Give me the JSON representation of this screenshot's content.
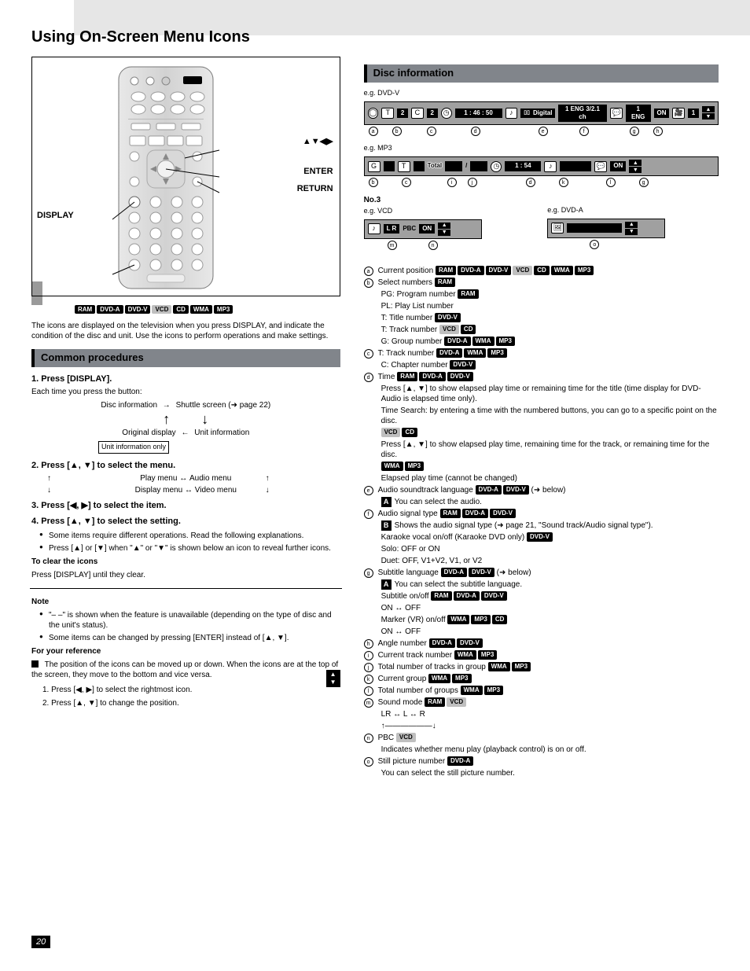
{
  "header": {
    "title": "Using On-Screen Menu Icons"
  },
  "remote": {
    "labels": {
      "cursor": "▲▼◀▶",
      "enter": "ENTER",
      "display": "DISPLAY",
      "return": "RETURN"
    }
  },
  "top_badges": [
    "RAM",
    "DVD-A",
    "DVD-V",
    "VCD",
    "CD",
    "WMA",
    "MP3"
  ],
  "intro": "The icons are displayed on the television when you press DISPLAY, and indicate the condition of the disc and unit. Use the icons to perform operations and make settings.",
  "common": {
    "bar_title": "Common procedures",
    "h1": "1. Press [DISPLAY].",
    "h1_body": "Each time you press the button:",
    "flow1_a": "Disc information",
    "flow1_arrow": "→",
    "flow1_b": "Shuttle screen (➜ page 22)",
    "flow_vert_a": "↑",
    "flow_vert_b": "↓",
    "flow2_a": "Original display",
    "flow2_arrow": "←",
    "flow2_b": "Unit information",
    "unit_info_tag": "Unit information only",
    "h2": "2. Press [▲, ▼] to select the menu.",
    "flow3_a": "Play menu",
    "flow3_b": "Audio menu",
    "flow4_a": "Display menu",
    "flow4_b": "Video menu",
    "h3": "3. Press [◀, ▶] to select the item.",
    "h4": "4. Press [▲, ▼] to select the setting.",
    "notes": [
      "Some items require different operations. Read the following explanations.",
      "Press [▲] or [▼] when \"▲\" or \"▼\" is shown below an icon to reveal further icons."
    ],
    "close": "To clear the icons",
    "close_body": "Press [DISPLAY] until they clear.",
    "note_hdr": "Note",
    "note_items": [
      "\"– –\" is shown when the feature is unavailable (depending on the type of disc and the unit's status).",
      "Some items can be changed by pressing [ENTER] instead of [▲, ▼]."
    ],
    "ref_hdr": "For your reference",
    "ref_body1": "The position of the icons can be moved up or down. When the icons are at the top of the screen, they move to the bottom and vice versa.",
    "ref_steps_a": "1. Press [◀, ▶] to select the rightmost icon.",
    "ref_steps_b": "2. Press [▲, ▼] to change the position."
  },
  "disc": {
    "bar_title": "Disc information",
    "osd1_labels": [
      "a",
      "b",
      "c",
      "d",
      "e",
      "f",
      "g",
      "h"
    ],
    "osd1": {
      "T_no1": "2",
      "T_no2": "2",
      "time": "1 : 46 : 50",
      "aud_icon": "♪",
      "dd": "Digital",
      "aud": "1 ENG",
      "ch": "3/2.1 ch",
      "sub_no": "1",
      "sub_lang": "ENG",
      "sub_on": "ON",
      "angle": "1"
    },
    "osd2_labels": [
      "b",
      "c",
      "i",
      "j",
      "d",
      "k",
      "l",
      "g"
    ],
    "osd2_prefix": "e.g. MP3",
    "osd2": {
      "G": "G",
      "T": "T",
      "total_lbl": "Total",
      "count_a": "",
      "count_b": "",
      "time": "1 : 54",
      "on": "ON"
    },
    "osd3_no": "No.3",
    "osd3_prefix": "e.g. VCD",
    "osd3": {
      "LR": "L R",
      "PBC": "PBC",
      "on": "ON"
    },
    "osd3_letters": [
      "m",
      "n"
    ],
    "osd4_prefix": "e.g. DVD-A",
    "osd4_letters": [
      "o"
    ],
    "legend": {
      "a": {
        "label": "a",
        "text": "Current position",
        "badges": [
          "RAM",
          "DVD-A",
          "DVD-V",
          "VCD",
          "CD",
          "WMA",
          "MP3"
        ]
      },
      "b": {
        "label": "b",
        "text": "Select numbers",
        "badges": [
          "RAM"
        ],
        "lines": [
          {
            "pre": "PG: Program number",
            "badges": [
              "RAM"
            ]
          },
          {
            "pre": "PL: Play List number",
            "badges": []
          },
          {
            "pre": "T: Title number",
            "badges": [
              "DVD-V"
            ]
          },
          {
            "pre": "T: Track number",
            "badges": [
              "VCD",
              "CD"
            ]
          },
          {
            "pre": "G: Group number",
            "badges": [
              "DVD-A",
              "WMA",
              "MP3"
            ]
          }
        ]
      },
      "c": {
        "label": "c",
        "text": "T: Track number",
        "badges": [
          "DVD-A",
          "WMA",
          "MP3"
        ],
        "lines": [
          {
            "pre": "C: Chapter number",
            "badges": [
              "DVD-V"
            ]
          }
        ]
      },
      "d": {
        "label": "d",
        "text": "Time",
        "badges": [
          "RAM",
          "DVD-A",
          "DVD-V"
        ],
        "lines": [
          {
            "pre": "Press [▲, ▼] to show elapsed play time or remaining time for the title (time display for DVD-Audio is elapsed time only).",
            "badges": []
          },
          {
            "pre": "",
            "badges": []
          },
          {
            "pre": "Time Search: by entering a time with the numbered buttons, you can go to a specific point on the disc.",
            "badges": []
          },
          {
            "pre": "",
            "badges": [
              "VCD",
              "CD"
            ]
          },
          {
            "pre": "Press [▲, ▼] to show elapsed play time, remaining time for the track, or remaining time for the disc.",
            "badges": []
          },
          {
            "pre": "",
            "badges": [
              "WMA",
              "MP3"
            ]
          },
          {
            "pre": "Elapsed play time (cannot be changed)",
            "badges": []
          }
        ]
      },
      "e": {
        "label": "e",
        "text": "Audio soundtrack language",
        "badges": [
          "DVD-A",
          "DVD-V"
        ],
        "suffix": "(➜ below)",
        "note": "You can select the audio."
      },
      "f": {
        "label": "f",
        "text": "Audio signal type",
        "badges": [
          "RAM",
          "DVD-A",
          "DVD-V"
        ],
        "note": "Shows the audio signal type (➜ page 21, \"Sound track/Audio signal type\").",
        "lines": [
          {
            "pre": "Karaoke vocal on/off (Karaoke DVD only)",
            "badges": [
              "DVD-V"
            ]
          },
          {
            "pre": "Solo: OFF or ON",
            "badges": []
          },
          {
            "pre": "Duet: OFF, V1+V2, V1, or V2",
            "badges": []
          }
        ]
      },
      "g": {
        "label": "g",
        "text": "Subtitle language",
        "badges": [
          "DVD-A",
          "DVD-V"
        ],
        "suffix": "(➜ below)",
        "note": "You can select the subtitle language.",
        "lines": [
          {
            "pre": "Subtitle on/off",
            "badges": [
              "RAM",
              "DVD-A",
              "DVD-V"
            ]
          },
          {
            "pre": "ON ↔ OFF",
            "badges": []
          },
          {
            "pre": "Marker (VR) on/off",
            "badges": [
              "WMA",
              "MP3",
              "CD"
            ]
          },
          {
            "pre": "ON ↔ OFF",
            "badges": []
          }
        ]
      },
      "h": {
        "label": "h",
        "text": "Angle number",
        "badges": [
          "DVD-A",
          "DVD-V"
        ]
      },
      "i": {
        "label": "i",
        "text": "Current track number",
        "badges": [
          "WMA",
          "MP3"
        ]
      },
      "j": {
        "label": "j",
        "text": "Total number of tracks in group",
        "badges": [
          "WMA",
          "MP3"
        ]
      },
      "k": {
        "label": "k",
        "text": "Current group",
        "badges": [
          "WMA",
          "MP3"
        ]
      },
      "l": {
        "label": "l",
        "text": "Total number of groups",
        "badges": [
          "WMA",
          "MP3"
        ]
      },
      "m": {
        "label": "m",
        "text": "Sound mode",
        "badges": [
          "RAM",
          "VCD"
        ],
        "lines": [
          {
            "pre": "LR ↔ L ↔ R",
            "badges": []
          },
          {
            "pre": "↑——————↓",
            "badges": []
          }
        ]
      },
      "n": {
        "label": "n",
        "text": "PBC",
        "badges": [
          "VCD"
        ],
        "lines": [
          {
            "pre": "Indicates whether menu play (playback control) is on or off.",
            "badges": []
          }
        ]
      },
      "o": {
        "label": "o",
        "text": "Still picture number",
        "badges": [
          "DVD-A"
        ],
        "lines": [
          {
            "pre": "You can select the still picture number.",
            "badges": []
          }
        ]
      }
    }
  },
  "pagenum": "20"
}
